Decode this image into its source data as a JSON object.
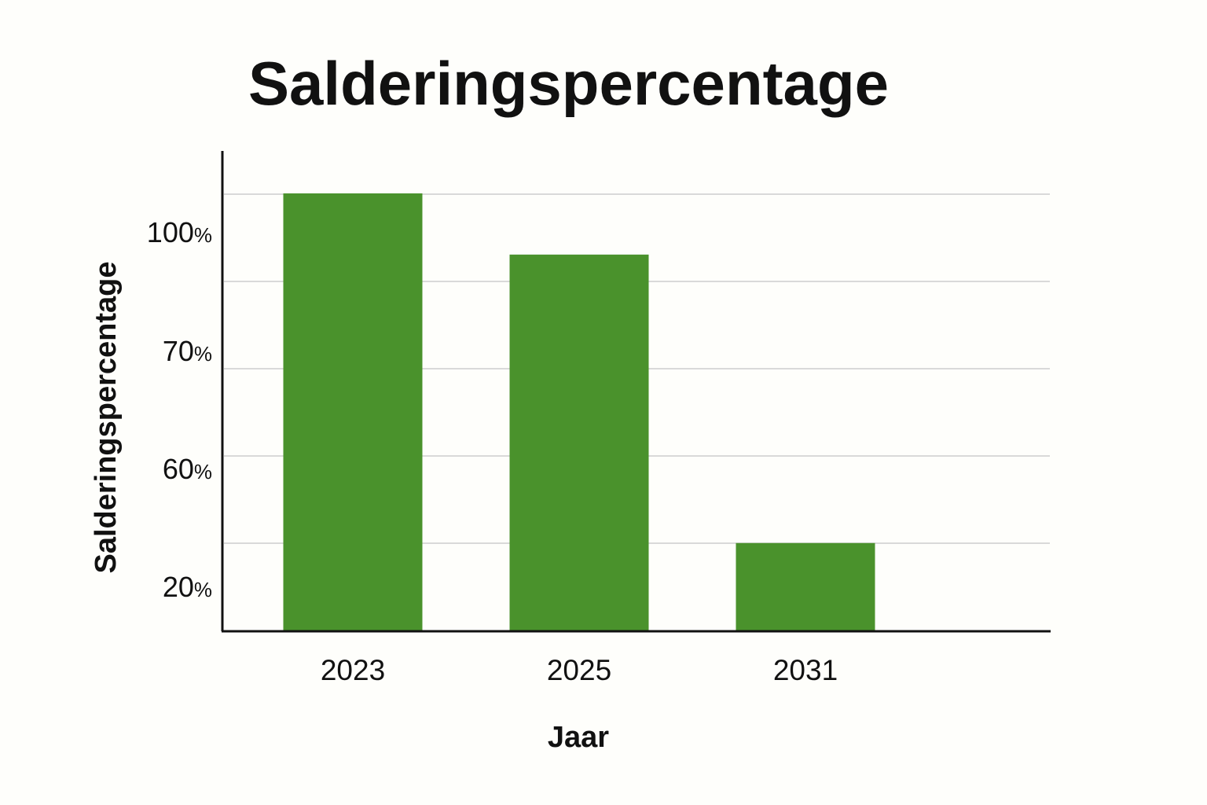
{
  "chart_data": {
    "type": "bar",
    "title": "Salderingspercentage",
    "xlabel": "Jaar",
    "ylabel": "Salderingspercentage",
    "categories": [
      "2023",
      "2025",
      "2031"
    ],
    "values": [
      100,
      86,
      20
    ],
    "ytick_labels": [
      {
        "num": "100",
        "unit": "%"
      },
      {
        "num": "70",
        "unit": "%"
      },
      {
        "num": "60",
        "unit": "%"
      },
      {
        "num": "20",
        "unit": "%"
      }
    ],
    "ylim": [
      0,
      100
    ],
    "grid": true,
    "legend": "none",
    "colors": {
      "bar": "#4a922c",
      "grid": "#d9d9d9",
      "axis": "#111111",
      "text": "#111111",
      "background": "#fefefb"
    }
  }
}
